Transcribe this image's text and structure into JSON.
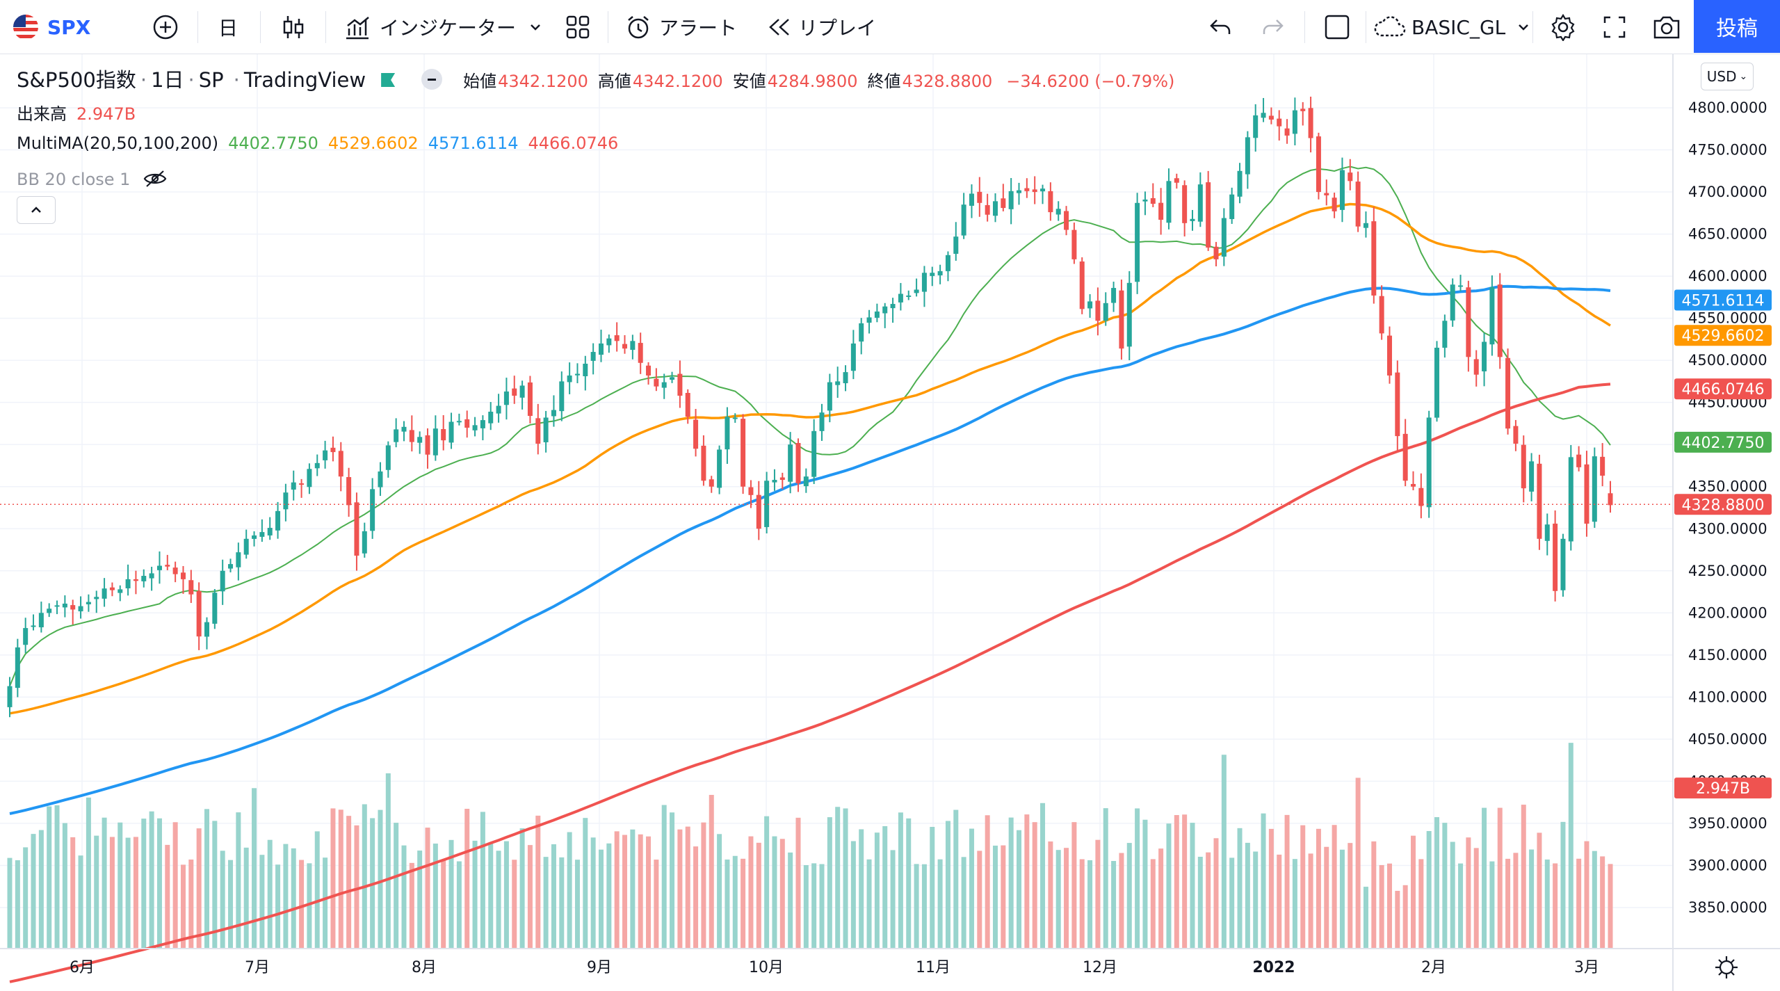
{
  "toolbar": {
    "symbol": "SPX",
    "interval": "日",
    "indicators_label": "インジケーター",
    "alert_label": "アラート",
    "replay_label": "リプレイ",
    "layout_name": "BASIC_GL",
    "post_label": "投稿"
  },
  "legend": {
    "symbol_name": "S&P500指数",
    "interval": "1日",
    "exchange": "SP",
    "source": "TradingView",
    "open_label": "始値",
    "open": "4342.1200",
    "high_label": "高値",
    "high": "4342.1200",
    "low_label": "安値",
    "low": "4284.9800",
    "close_label": "終値",
    "close": "4328.8800",
    "change": "−34.6200 (−0.79%)",
    "volume_label": "出来高",
    "volume": "2.947B",
    "ma_label": "MultiMA(20,50,100,200)",
    "ma20": "4402.7750",
    "ma50": "4529.6602",
    "ma100": "4571.6114",
    "ma200": "4466.0746",
    "bb_label": "BB 20 close 1"
  },
  "currency": "USD",
  "colors": {
    "up": "#26a69a",
    "down": "#ef5350",
    "vol_up": "#98d4cd",
    "vol_down": "#f5a7a5",
    "ma20": "#4caf50",
    "ma50": "#ff9800",
    "ma100": "#2196f3",
    "ma200": "#f05350",
    "accent": "#2962ff"
  },
  "chart_data": {
    "type": "candlestick",
    "y_ticks": [
      "4800.0000",
      "4750.0000",
      "4700.0000",
      "4650.0000",
      "4600.0000",
      "4550.0000",
      "4500.0000",
      "4450.0000",
      "4400.0000",
      "4350.0000",
      "4300.0000",
      "4250.0000",
      "4200.0000",
      "4150.0000",
      "4100.0000",
      "4050.0000",
      "4000.0000",
      "3950.0000",
      "3900.0000",
      "3850.0000"
    ],
    "ylim": [
      3820,
      4850
    ],
    "x_ticks": [
      "6月",
      "7月",
      "8月",
      "9月",
      "10月",
      "11月",
      "12月",
      "2022",
      "2月",
      "3月"
    ],
    "markers": [
      {
        "label": "4571.6114",
        "value": 4571.6114,
        "color": "#2196f3"
      },
      {
        "label": "4529.6602",
        "value": 4529.6602,
        "color": "#ff9800"
      },
      {
        "label": "4466.0746",
        "value": 4466.0746,
        "color": "#f05350"
      },
      {
        "label": "4402.7750",
        "value": 4402.775,
        "color": "#4caf50"
      },
      {
        "label": "4328.8800",
        "value": 4328.88,
        "color": "#ef5350"
      },
      {
        "label": "2.947B",
        "value": 3992,
        "color": "#ef5350"
      }
    ],
    "closes": [
      4113,
      4159,
      4182,
      4185,
      4200,
      4205,
      4209,
      4211,
      4204,
      4208,
      4213,
      4219,
      4229,
      4227,
      4228,
      4240,
      4238,
      4244,
      4247,
      4256,
      4255,
      4246,
      4240,
      4222,
      4172,
      4189,
      4224,
      4250,
      4258,
      4272,
      4288,
      4292,
      4296,
      4301,
      4321,
      4343,
      4355,
      4353,
      4371,
      4378,
      4393,
      4391,
      4362,
      4328,
      4268,
      4297,
      4347,
      4368,
      4399,
      4418,
      4421,
      4403,
      4409,
      4388,
      4419,
      4405,
      4427,
      4428,
      4420,
      4423,
      4429,
      4439,
      4446,
      4463,
      4458,
      4470,
      4434,
      4401,
      4432,
      4441,
      4475,
      4482,
      4484,
      4496,
      4510,
      4520,
      4526,
      4523,
      4514,
      4523,
      4497,
      4482,
      4469,
      4474,
      4480,
      4458,
      4433,
      4395,
      4357,
      4350,
      4394,
      4433,
      4432,
      4350,
      4340,
      4300,
      4357,
      4358,
      4358,
      4400,
      4354,
      4362,
      4416,
      4438,
      4474,
      4475,
      4486,
      4520,
      4544,
      4551,
      4558,
      4564,
      4567,
      4579,
      4577,
      4584,
      4604,
      4604,
      4606,
      4625,
      4647,
      4685,
      4698,
      4687,
      4673,
      4689,
      4681,
      4701,
      4702,
      4701,
      4700,
      4704,
      4676,
      4680,
      4655,
      4620,
      4561,
      4570,
      4547,
      4568,
      4586,
      4514,
      4592,
      4687,
      4691,
      4686,
      4667,
      4713,
      4711,
      4663,
      4668,
      4709,
      4634,
      4620,
      4669,
      4697,
      4725,
      4765,
      4791,
      4794,
      4786,
      4778,
      4767,
      4797,
      4796,
      4764,
      4700,
      4696,
      4677,
      4726,
      4713,
      4659,
      4663,
      4577,
      4532,
      4482,
      4410,
      4357,
      4350,
      4327,
      4432,
      4515,
      4547,
      4590,
      4589,
      4504,
      4483,
      4522,
      4587,
      4504,
      4419,
      4401,
      4348,
      4380,
      4288,
      4305,
      4226,
      4288,
      4385,
      4373,
      4306,
      4386,
      4363,
      4328
    ],
    "volumes_note": "volume bars rendered in lower pane; latest 2.947B"
  }
}
